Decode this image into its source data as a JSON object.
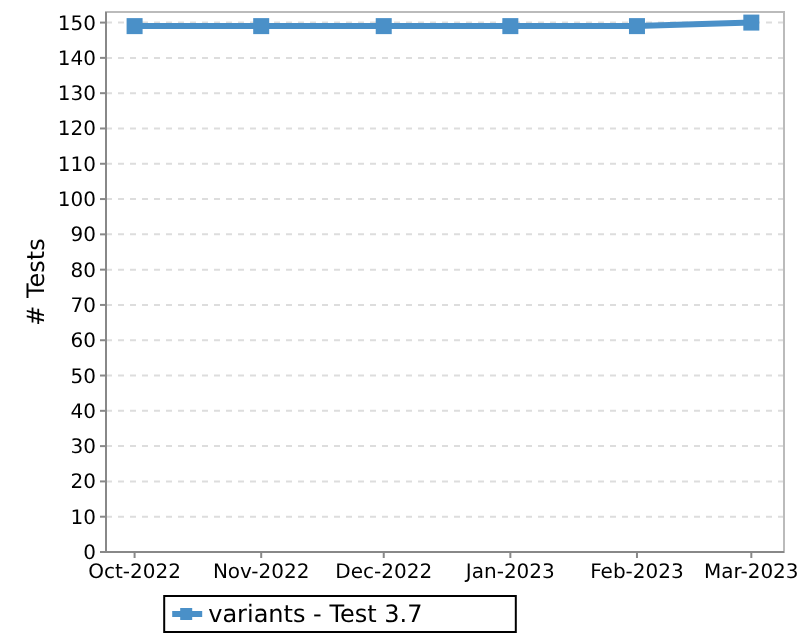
{
  "chart_data": {
    "type": "line",
    "ylabel": "# Tests",
    "x": [
      "2022-10-01",
      "2022-11-01",
      "2022-12-01",
      "2023-01-01",
      "2023-02-01",
      "2023-03-01"
    ],
    "series": [
      {
        "name": "variants - Test 3.7",
        "color": "#4a90c8",
        "values": [
          149,
          149,
          149,
          149,
          149,
          150
        ]
      }
    ],
    "xlim": [
      "2022-09-24",
      "2023-03-09"
    ],
    "xticks": [
      {
        "value": "2022-10-01",
        "label": "Oct-2022"
      },
      {
        "value": "2022-11-01",
        "label": "Nov-2022"
      },
      {
        "value": "2022-12-01",
        "label": "Dec-2022"
      },
      {
        "value": "2023-01-01",
        "label": "Jan-2023"
      },
      {
        "value": "2023-02-01",
        "label": "Feb-2023"
      },
      {
        "value": "2023-03-01",
        "label": "Mar-2023"
      }
    ],
    "ylim": [
      0,
      153
    ],
    "yticks": [
      0,
      10,
      20,
      30,
      40,
      50,
      60,
      70,
      80,
      90,
      100,
      110,
      120,
      130,
      140,
      150
    ],
    "grid": "y",
    "legend": "bottom",
    "marker": "square",
    "line_style": "solid"
  }
}
